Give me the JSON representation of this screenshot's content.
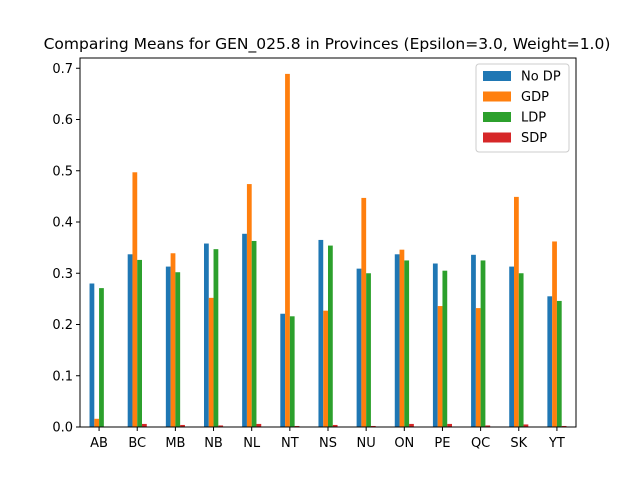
{
  "chart_data": {
    "type": "bar",
    "title": "Comparing Means for GEN_025.8 in Provinces (Epsilon=3.0, Weight=1.0)",
    "xlabel": "",
    "ylabel": "",
    "categories": [
      "AB",
      "BC",
      "MB",
      "NB",
      "NL",
      "NT",
      "NS",
      "NU",
      "ON",
      "PE",
      "QC",
      "SK",
      "YT"
    ],
    "ylim": [
      0,
      0.72
    ],
    "yticks": [
      "0.0",
      "0.1",
      "0.2",
      "0.3",
      "0.4",
      "0.5",
      "0.6",
      "0.7"
    ],
    "grid": false,
    "legend_position": "top-right",
    "series": [
      {
        "name": "No DP",
        "color": "#1f77b4",
        "values": [
          0.28,
          0.337,
          0.313,
          0.358,
          0.377,
          0.221,
          0.365,
          0.309,
          0.337,
          0.319,
          0.336,
          0.313,
          0.255
        ]
      },
      {
        "name": "GDP",
        "color": "#ff7f0e",
        "values": [
          0.016,
          0.497,
          0.339,
          0.252,
          0.474,
          0.689,
          0.227,
          0.447,
          0.346,
          0.236,
          0.232,
          0.449,
          0.362
        ]
      },
      {
        "name": "LDP",
        "color": "#2ca02c",
        "values": [
          0.271,
          0.326,
          0.302,
          0.347,
          0.363,
          0.216,
          0.354,
          0.3,
          0.325,
          0.305,
          0.325,
          0.3,
          0.246
        ]
      },
      {
        "name": "SDP",
        "color": "#d62728",
        "values": [
          0.001,
          0.006,
          0.004,
          0.003,
          0.006,
          0.002,
          0.004,
          0.002,
          0.006,
          0.006,
          0.003,
          0.005,
          0.002
        ]
      }
    ]
  }
}
